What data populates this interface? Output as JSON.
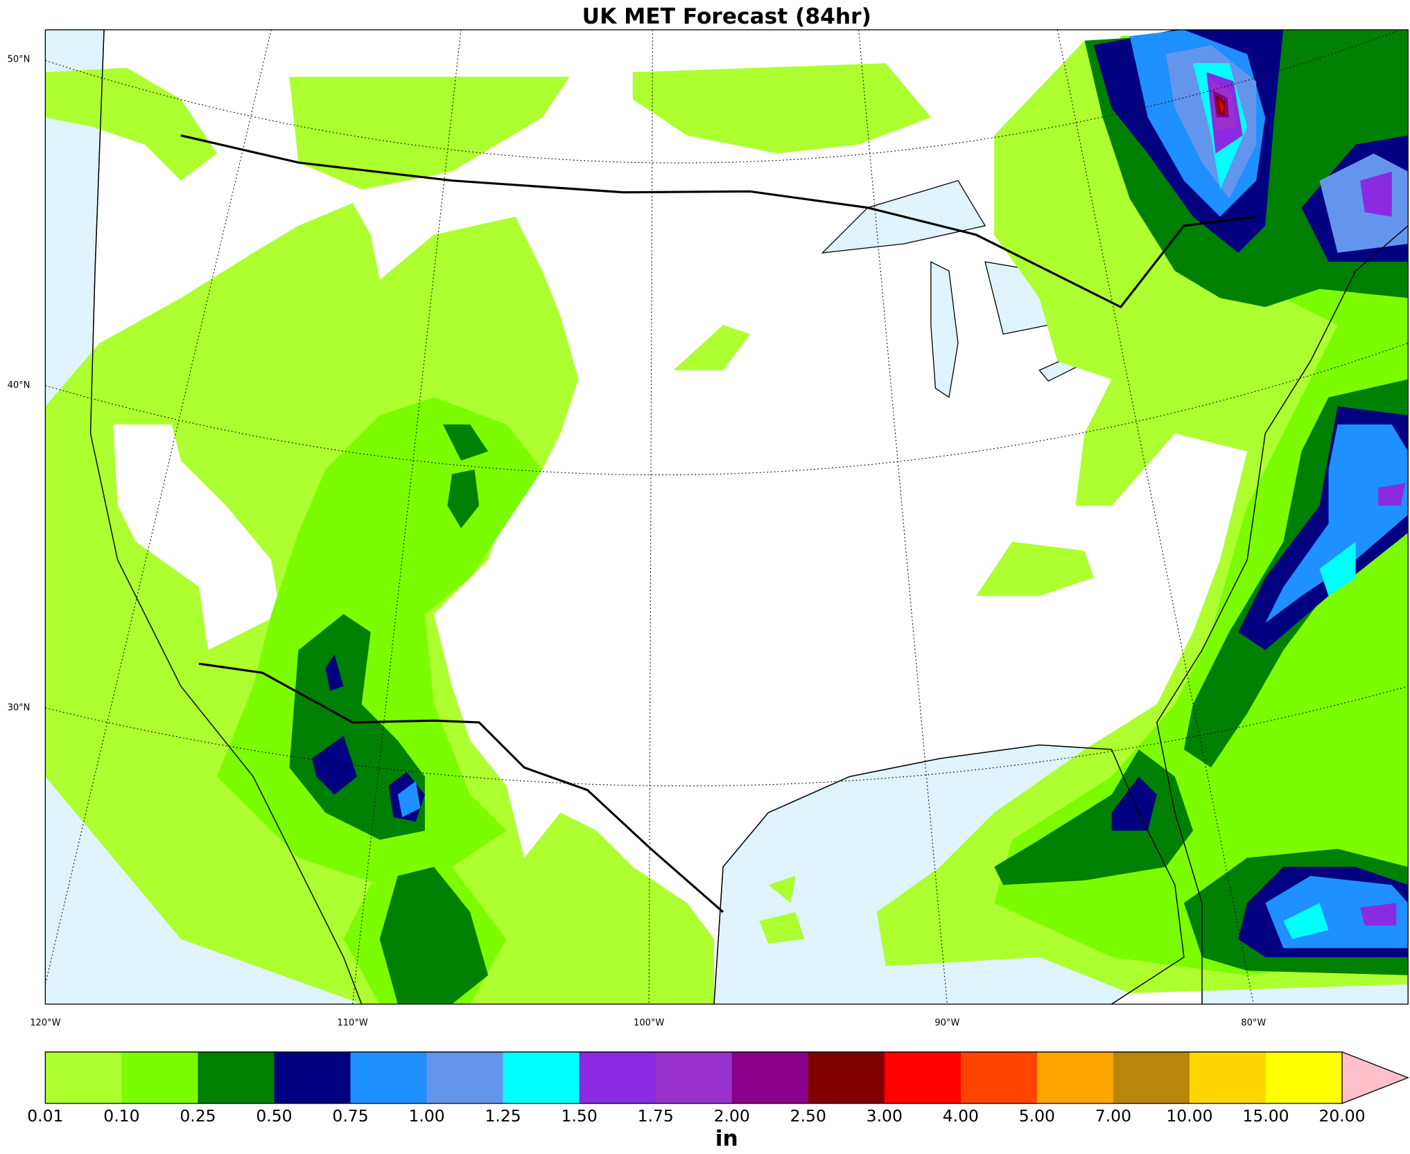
{
  "title": "UK MET Forecast (84hr)",
  "map": {
    "lat_labels": [
      "50°N",
      "40°N",
      "30°N"
    ],
    "lon_labels": [
      "120°W",
      "110°W",
      "100°W",
      "90°W",
      "80°W"
    ]
  },
  "colorbar": {
    "levels": [
      "0.01",
      "0.10",
      "0.25",
      "0.50",
      "0.75",
      "1.00",
      "1.25",
      "1.50",
      "1.75",
      "2.00",
      "2.50",
      "3.00",
      "4.00",
      "5.00",
      "7.00",
      "10.00",
      "15.00",
      "20.00"
    ],
    "colors": [
      "#adff2f",
      "#7cfc00",
      "#008000",
      "#000080",
      "#1e90ff",
      "#6495ed",
      "#00ffff",
      "#8a2be2",
      "#9932cc",
      "#8b008b",
      "#800000",
      "#ff0000",
      "#ff4500",
      "#ffa500",
      "#b8860b",
      "#ffd700",
      "#ffff00"
    ],
    "extend_color": "#ffc0cb",
    "unit": "in"
  }
}
